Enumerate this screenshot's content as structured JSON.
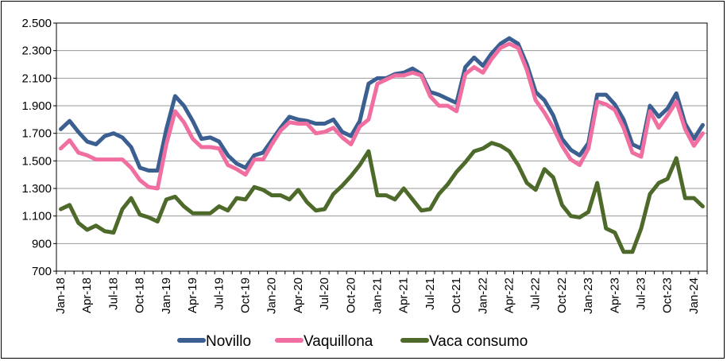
{
  "chart_data": {
    "type": "line",
    "title": "",
    "xlabel": "",
    "ylabel": "",
    "ylim": [
      700,
      2500
    ],
    "y_ticks": [
      700,
      900,
      1100,
      1300,
      1500,
      1700,
      1900,
      2100,
      2300,
      2500
    ],
    "y_tick_labels": [
      "700",
      "900",
      "1.100",
      "1.300",
      "1.500",
      "1.700",
      "1.900",
      "2.100",
      "2.300",
      "2.500"
    ],
    "grid": true,
    "legend_position": "bottom",
    "x": [
      "Jan-18",
      "Feb-18",
      "Mar-18",
      "Apr-18",
      "May-18",
      "Jun-18",
      "Jul-18",
      "Aug-18",
      "Sep-18",
      "Oct-18",
      "Nov-18",
      "Dec-18",
      "Jan-19",
      "Feb-19",
      "Mar-19",
      "Apr-19",
      "May-19",
      "Jun-19",
      "Jul-19",
      "Aug-19",
      "Sep-19",
      "Oct-19",
      "Nov-19",
      "Dec-19",
      "Jan-20",
      "Feb-20",
      "Mar-20",
      "Apr-20",
      "May-20",
      "Jun-20",
      "Jul-20",
      "Aug-20",
      "Sep-20",
      "Oct-20",
      "Nov-20",
      "Dec-20",
      "Jan-21",
      "Feb-21",
      "Mar-21",
      "Apr-21",
      "May-21",
      "Jun-21",
      "Jul-21",
      "Aug-21",
      "Sep-21",
      "Oct-21",
      "Nov-21",
      "Dec-21",
      "Jan-22",
      "Feb-22",
      "Mar-22",
      "Apr-22",
      "May-22",
      "Jun-22",
      "Jul-22",
      "Aug-22",
      "Sep-22",
      "Oct-22",
      "Nov-22",
      "Dec-22",
      "Jan-23",
      "Feb-23",
      "Mar-23",
      "Apr-23",
      "May-23",
      "Jun-23",
      "Jul-23",
      "Aug-23",
      "Sep-23",
      "Oct-23",
      "Nov-23",
      "Dec-23",
      "Jan-24",
      "Feb-24"
    ],
    "x_tick_labels": [
      "Jan-18",
      "Apr-18",
      "Jul-18",
      "Oct-18",
      "Jan-19",
      "Apr-19",
      "Jul-19",
      "Oct-19",
      "Jan-20",
      "Apr-20",
      "Jul-20",
      "Oct-20",
      "Jan-21",
      "Apr-21",
      "Jul-21",
      "Oct-21",
      "Jan-22",
      "Apr-22",
      "Jul-22",
      "Oct-22",
      "Jan-23",
      "Apr-23",
      "Jul-23",
      "Oct-23",
      "Jan-24"
    ],
    "series": [
      {
        "name": "Novillo",
        "color": "#3b5f91",
        "values": [
          1730,
          1790,
          1710,
          1640,
          1620,
          1680,
          1700,
          1670,
          1600,
          1450,
          1430,
          1430,
          1730,
          1970,
          1900,
          1790,
          1660,
          1670,
          1640,
          1540,
          1480,
          1450,
          1540,
          1560,
          1650,
          1740,
          1820,
          1800,
          1790,
          1770,
          1770,
          1800,
          1710,
          1680,
          1790,
          2060,
          2100,
          2100,
          2130,
          2140,
          2170,
          2130,
          2000,
          1980,
          1950,
          1920,
          2180,
          2250,
          2190,
          2280,
          2350,
          2390,
          2350,
          2200,
          2000,
          1940,
          1830,
          1660,
          1580,
          1540,
          1630,
          1980,
          1980,
          1910,
          1800,
          1620,
          1590,
          1900,
          1820,
          1880,
          1990,
          1770,
          1660,
          1760
        ]
      },
      {
        "name": "Vaquillona",
        "color": "#f06ea0",
        "values": [
          1590,
          1650,
          1560,
          1540,
          1510,
          1510,
          1510,
          1510,
          1450,
          1360,
          1310,
          1300,
          1620,
          1860,
          1780,
          1660,
          1600,
          1600,
          1590,
          1470,
          1440,
          1400,
          1510,
          1510,
          1620,
          1720,
          1780,
          1770,
          1770,
          1700,
          1710,
          1740,
          1670,
          1620,
          1750,
          1800,
          2060,
          2090,
          2120,
          2120,
          2140,
          2120,
          1970,
          1900,
          1900,
          1860,
          2130,
          2180,
          2140,
          2240,
          2320,
          2350,
          2320,
          2160,
          1940,
          1850,
          1740,
          1610,
          1510,
          1470,
          1590,
          1930,
          1910,
          1870,
          1740,
          1560,
          1530,
          1860,
          1740,
          1830,
          1930,
          1730,
          1610,
          1700
        ]
      },
      {
        "name": "Vaca consumo",
        "color": "#4e6a2a",
        "values": [
          1150,
          1180,
          1050,
          1000,
          1030,
          990,
          980,
          1150,
          1230,
          1110,
          1090,
          1060,
          1220,
          1240,
          1170,
          1120,
          1120,
          1120,
          1170,
          1140,
          1230,
          1220,
          1310,
          1290,
          1250,
          1250,
          1220,
          1290,
          1200,
          1140,
          1150,
          1260,
          1320,
          1390,
          1470,
          1570,
          1250,
          1250,
          1220,
          1300,
          1220,
          1140,
          1150,
          1260,
          1330,
          1420,
          1490,
          1570,
          1590,
          1630,
          1610,
          1570,
          1470,
          1340,
          1290,
          1440,
          1380,
          1180,
          1100,
          1090,
          1130,
          1340,
          1010,
          980,
          840,
          840,
          1010,
          1260,
          1340,
          1370,
          1520,
          1230,
          1230,
          1170
        ]
      }
    ]
  }
}
